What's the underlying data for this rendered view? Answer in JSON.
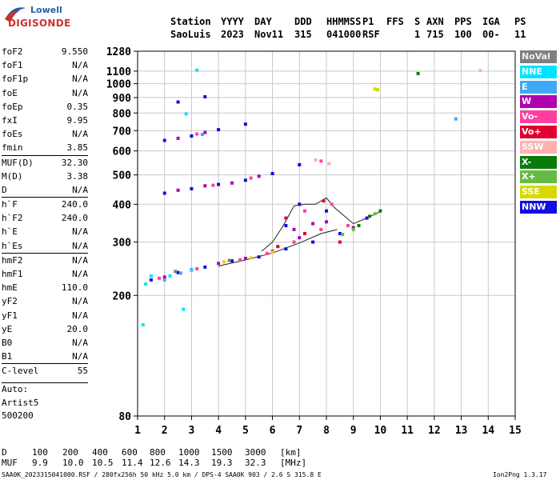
{
  "logo": {
    "line1": "Lowell",
    "line2": "DIGISONDE"
  },
  "header": {
    "labels": [
      "Station",
      "YYYY",
      "DAY",
      "DDD",
      "HHMMSS",
      "P1",
      "FFS",
      "S",
      "AXN",
      "PPS",
      "IGA",
      "PS"
    ],
    "values": [
      "SaoLuis",
      "2023",
      "Nov11",
      "315",
      "041000",
      "RSF",
      "1",
      "715",
      "100",
      "00-",
      "11"
    ]
  },
  "parameters": [
    {
      "name": "foF2",
      "value": "9.550"
    },
    {
      "name": "foF1",
      "value": "N/A"
    },
    {
      "name": "foF1p",
      "value": "N/A"
    },
    {
      "name": "foE",
      "value": "N/A"
    },
    {
      "name": "foEp",
      "value": "0.35"
    },
    {
      "name": "fxI",
      "value": "9.95"
    },
    {
      "name": "foEs",
      "value": "N/A"
    },
    {
      "name": "fmin",
      "value": "3.85"
    },
    {
      "name": "MUF(D)",
      "value": "32.30",
      "sep": true
    },
    {
      "name": "M(D)",
      "value": "3.38"
    },
    {
      "name": "D",
      "value": "N/A"
    },
    {
      "name": "h`F",
      "value": "240.0",
      "sep": true
    },
    {
      "name": "h`F2",
      "value": "240.0"
    },
    {
      "name": "h`E",
      "value": "N/A"
    },
    {
      "name": "h`Es",
      "value": "N/A"
    },
    {
      "name": "hmF2",
      "value": "N/A",
      "sep": true
    },
    {
      "name": "hmF1",
      "value": "N/A"
    },
    {
      "name": "hmE",
      "value": "110.0"
    },
    {
      "name": "yF2",
      "value": "N/A"
    },
    {
      "name": "yF1",
      "value": "N/A"
    },
    {
      "name": "yE",
      "value": "20.0"
    },
    {
      "name": "B0",
      "value": "N/A"
    },
    {
      "name": "B1",
      "value": "N/A"
    },
    {
      "name": "C-level",
      "value": "55",
      "sep": true
    }
  ],
  "auto": [
    "Auto:",
    "Artist5",
    "500200"
  ],
  "legend": [
    {
      "label": "NoVal",
      "color": "#808080"
    },
    {
      "label": "NNE",
      "color": "#00e5ff"
    },
    {
      "label": "E",
      "color": "#3fa9f5"
    },
    {
      "label": "W",
      "color": "#b000b0"
    },
    {
      "label": "Vo-",
      "color": "#ff3fa0"
    },
    {
      "label": "Vo+",
      "color": "#e00030"
    },
    {
      "label": "SSW",
      "color": "#ffb0b0"
    },
    {
      "label": "X-",
      "color": "#0a7a0a"
    },
    {
      "label": "X+",
      "color": "#66bb44"
    },
    {
      "label": "SSE",
      "color": "#d8d800"
    },
    {
      "label": "NNW",
      "color": "#1010e0"
    }
  ],
  "muf_table": {
    "row1_label": "D",
    "distances": [
      "100",
      "200",
      "400",
      "600",
      "800",
      "1000",
      "1500",
      "3000"
    ],
    "row1_unit": "[km]",
    "row2_label": "MUF",
    "mufs": [
      "9.9",
      "10.0",
      "10.5",
      "11.4",
      "12.6",
      "14.3",
      "19.3",
      "32.3"
    ],
    "row2_unit": "[MHz]"
  },
  "footer": {
    "left": "SAA0K_2023315041000.RSF / 280fx256h 50 kHz 5.0 km / DPS-4 SAA0K 903 / 2.6 S 315.8 E",
    "right": "Ion2Png 1.3.17"
  },
  "chart_data": {
    "type": "scatter",
    "xlabel": "",
    "ylabel": "",
    "xlim": [
      1,
      15
    ],
    "ylim": [
      80,
      1280
    ],
    "x_ticks": [
      1,
      2,
      3,
      4,
      5,
      6,
      7,
      8,
      9,
      10,
      11,
      12,
      13,
      14,
      15
    ],
    "y_ticks": [
      80,
      200,
      300,
      400,
      500,
      600,
      700,
      800,
      900,
      1000,
      1100,
      1280
    ],
    "y_scale": "log",
    "grid": true,
    "series": [
      {
        "name": "NNW",
        "points": [
          [
            1.5,
            225
          ],
          [
            2.5,
            238
          ],
          [
            3.5,
            248
          ],
          [
            4.5,
            260
          ],
          [
            5.5,
            268
          ],
          [
            6.5,
            285
          ],
          [
            7.5,
            300
          ],
          [
            8.5,
            320
          ],
          [
            9.5,
            360
          ],
          [
            2.0,
            435
          ],
          [
            3.0,
            450
          ],
          [
            4.0,
            465
          ],
          [
            5.0,
            480
          ],
          [
            6.0,
            505
          ],
          [
            7.0,
            540
          ],
          [
            2.0,
            650
          ],
          [
            3.0,
            672
          ],
          [
            4.0,
            705
          ],
          [
            5.0,
            735
          ],
          [
            2.5,
            870
          ],
          [
            3.5,
            905
          ],
          [
            6.5,
            340
          ],
          [
            7.0,
            400
          ],
          [
            8.0,
            380
          ]
        ]
      },
      {
        "name": "W",
        "points": [
          [
            2.0,
            230
          ],
          [
            3.0,
            243
          ],
          [
            4.0,
            255
          ],
          [
            5.0,
            265
          ],
          [
            6.0,
            280
          ],
          [
            7.0,
            310
          ],
          [
            8.0,
            350
          ],
          [
            9.0,
            335
          ],
          [
            2.5,
            445
          ],
          [
            3.5,
            460
          ],
          [
            4.5,
            470
          ],
          [
            5.5,
            495
          ],
          [
            2.5,
            660
          ],
          [
            3.5,
            690
          ],
          [
            6.8,
            330
          ],
          [
            7.5,
            345
          ]
        ]
      },
      {
        "name": "Vo-",
        "points": [
          [
            1.8,
            228
          ],
          [
            3.2,
            245
          ],
          [
            4.8,
            262
          ],
          [
            5.8,
            275
          ],
          [
            6.8,
            300
          ],
          [
            7.8,
            330
          ],
          [
            8.8,
            340
          ],
          [
            3.8,
            462
          ],
          [
            5.2,
            488
          ],
          [
            7.8,
            555
          ],
          [
            3.2,
            682
          ],
          [
            7.2,
            380
          ],
          [
            8.2,
            400
          ]
        ]
      },
      {
        "name": "Vo+",
        "points": [
          [
            6.2,
            290
          ],
          [
            7.2,
            320
          ],
          [
            7.9,
            410
          ],
          [
            8.5,
            300
          ],
          [
            6.5,
            360
          ]
        ]
      },
      {
        "name": "NNE",
        "points": [
          [
            1.3,
            218
          ],
          [
            2.2,
            232
          ],
          [
            3.0,
            242
          ],
          [
            1.5,
            232
          ],
          [
            2.8,
            795
          ],
          [
            3.2,
            1108
          ],
          [
            1.2,
            160
          ],
          [
            2.7,
            180
          ]
        ]
      },
      {
        "name": "E",
        "points": [
          [
            2.0,
            225
          ],
          [
            2.6,
            237
          ],
          [
            3.4,
            680
          ],
          [
            12.8,
            765
          ]
        ]
      },
      {
        "name": "X-",
        "points": [
          [
            9.6,
            365
          ],
          [
            10.0,
            380
          ],
          [
            9.2,
            340
          ],
          [
            11.4,
            1080
          ]
        ]
      },
      {
        "name": "X+",
        "points": [
          [
            9.0,
            330
          ],
          [
            9.8,
            372
          ],
          [
            8.6,
            318
          ]
        ]
      },
      {
        "name": "SSE",
        "points": [
          [
            4.2,
            258
          ],
          [
            5.2,
            266
          ],
          [
            6.0,
            278
          ],
          [
            9.8,
            960
          ],
          [
            9.9,
            955
          ]
        ]
      },
      {
        "name": "SSW",
        "points": [
          [
            7.6,
            560
          ],
          [
            8.1,
            545
          ],
          [
            13.7,
            1105
          ]
        ]
      },
      {
        "name": "NoVal",
        "points": [
          [
            2.4,
            240
          ],
          [
            4.4,
            261
          ]
        ]
      }
    ],
    "trace_lines": [
      [
        [
          5.6,
          280
        ],
        [
          6.0,
          300
        ],
        [
          6.4,
          340
        ],
        [
          6.8,
          395
        ],
        [
          7.2,
          400
        ],
        [
          7.6,
          400
        ],
        [
          8.0,
          420
        ],
        [
          8.3,
          390
        ],
        [
          8.6,
          370
        ],
        [
          9.0,
          345
        ],
        [
          9.5,
          360
        ],
        [
          10.0,
          378
        ]
      ],
      [
        [
          4.0,
          250
        ],
        [
          5.0,
          262
        ],
        [
          6.0,
          276
        ],
        [
          7.0,
          298
        ],
        [
          7.8,
          320
        ],
        [
          8.4,
          330
        ]
      ]
    ]
  }
}
